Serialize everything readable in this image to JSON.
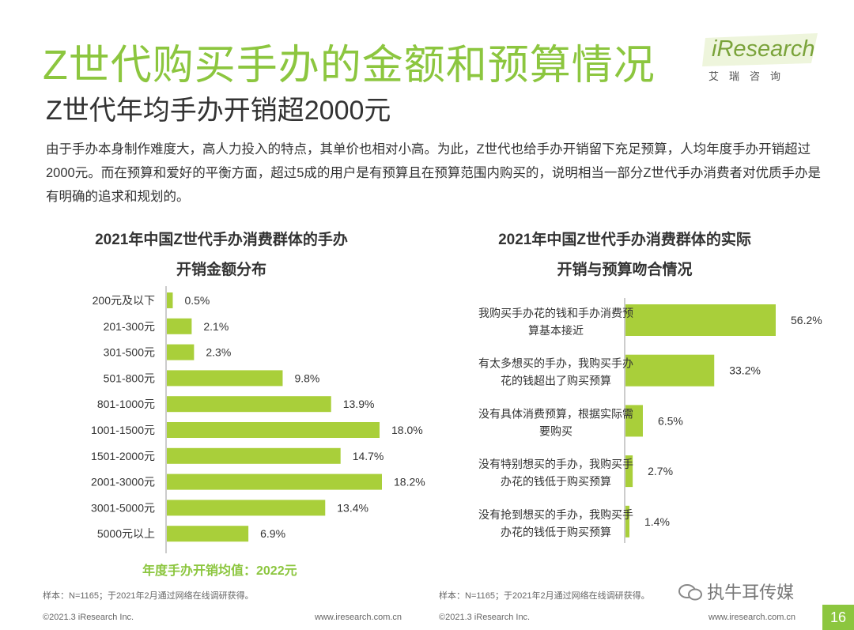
{
  "title": "Z世代购买手办的金额和预算情况",
  "subtitle": "Z世代年均手办开销超2000元",
  "body": "由于手办本身制作难度大，高人力投入的特点，其单价也相对小高。为此，Z世代也给手办开销留下充足预算，人均年度手办开销超过2000元。而在预算和爱好的平衡方面，超过5成的用户是有预算且在预算范围内购买的，说明相当一部分Z世代手办消费者对优质手办是有明确的追求和规划的。",
  "logo": {
    "word": "iResearch",
    "cn": "艾瑞咨询"
  },
  "colors": {
    "accent": "#8cc63f",
    "bar": "#a9cf3a",
    "text": "#333333",
    "muted": "#666666"
  },
  "chart_data": [
    {
      "type": "bar",
      "orientation": "horizontal",
      "title_line1": "2021年中国Z世代手办消费群体的手办",
      "title_line2": "开销金额分布",
      "categories": [
        "200元及以下",
        "201-300元",
        "301-500元",
        "501-800元",
        "801-1000元",
        "1001-1500元",
        "1501-2000元",
        "2001-3000元",
        "3001-5000元",
        "5000元以上"
      ],
      "values": [
        0.5,
        2.1,
        2.3,
        9.8,
        13.9,
        18.0,
        14.7,
        18.2,
        13.4,
        6.9
      ],
      "value_labels": [
        "0.5%",
        "2.1%",
        "2.3%",
        "9.8%",
        "13.9%",
        "18.0%",
        "14.7%",
        "18.2%",
        "13.4%",
        "6.9%"
      ],
      "annotation": "年度手办开销均值：2022元",
      "source": "样本：N=1165；于2021年2月通过网络在线调研获得。"
    },
    {
      "type": "bar",
      "orientation": "horizontal",
      "title_line1": "2021年中国Z世代手办消费群体的实际",
      "title_line2": "开销与预算吻合情况",
      "categories": [
        [
          "我购买手办花的钱和手办消费预",
          "算基本接近"
        ],
        [
          "有太多想买的手办，我购买手办",
          "花的钱超出了购买预算"
        ],
        [
          "没有具体消费预算，根据实际需",
          "要购买"
        ],
        [
          "没有特别想买的手办，我购买手",
          "办花的钱低于购买预算"
        ],
        [
          "没有抢到想买的手办，我购买手",
          "办花的钱低于购买预算"
        ]
      ],
      "values": [
        56.2,
        33.2,
        6.5,
        2.7,
        1.4
      ],
      "value_labels": [
        "56.2%",
        "33.2%",
        "6.5%",
        "2.7%",
        "1.4%"
      ],
      "source": "样本：N=1165；于2021年2月通过网络在线调研获得。"
    }
  ],
  "footer": {
    "copyright": "©2021.3 iResearch Inc.",
    "site": "www.iresearch.com.cn"
  },
  "watermark": "执牛耳传媒",
  "page_number": "16"
}
